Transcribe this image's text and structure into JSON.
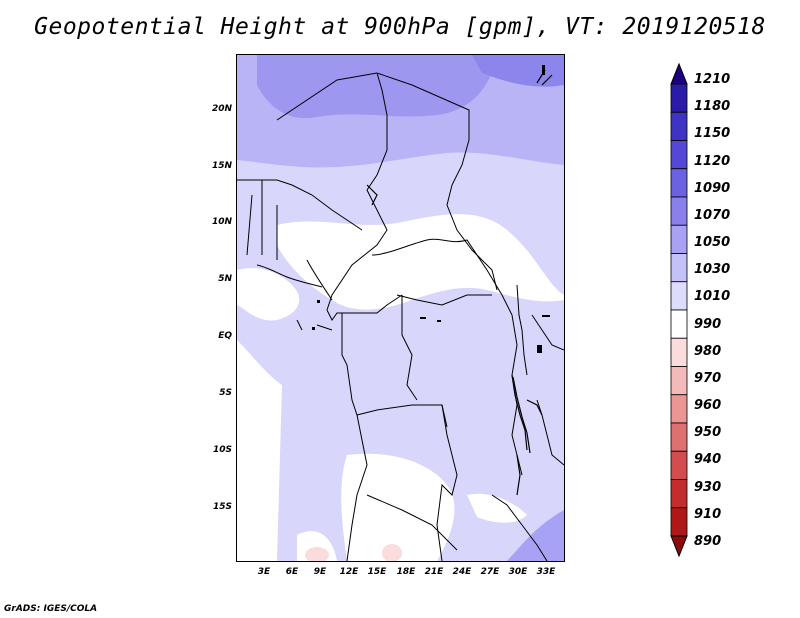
{
  "title": "Geopotential Height at 900hPa [gpm], VT: 2019120518",
  "footer": "GrADS: IGES/COLA",
  "map": {
    "lat_labels": [
      "20N",
      "15N",
      "10N",
      "5N",
      "EQ",
      "5S",
      "10S",
      "15S"
    ],
    "lon_labels": [
      "3E",
      "6E",
      "9E",
      "12E",
      "15E",
      "18E",
      "21E",
      "24E",
      "27E",
      "30E",
      "33E"
    ]
  },
  "colorbar": {
    "levels": [
      "1210",
      "1180",
      "1150",
      "1120",
      "1090",
      "1070",
      "1050",
      "1030",
      "1010",
      "990",
      "980",
      "970",
      "960",
      "950",
      "940",
      "930",
      "910",
      "890"
    ],
    "colors": [
      "#1a0080",
      "#2a1ca6",
      "#3e33c2",
      "#5548d6",
      "#6b62e2",
      "#8a80ec",
      "#a8a2f4",
      "#c4c1f8",
      "#dedcfb",
      "#ffffff",
      "#fbdcdc",
      "#f4b9b9",
      "#eb9595",
      "#df7070",
      "#d24d4d",
      "#c32d2d",
      "#b01818",
      "#8e0a0a"
    ]
  }
}
